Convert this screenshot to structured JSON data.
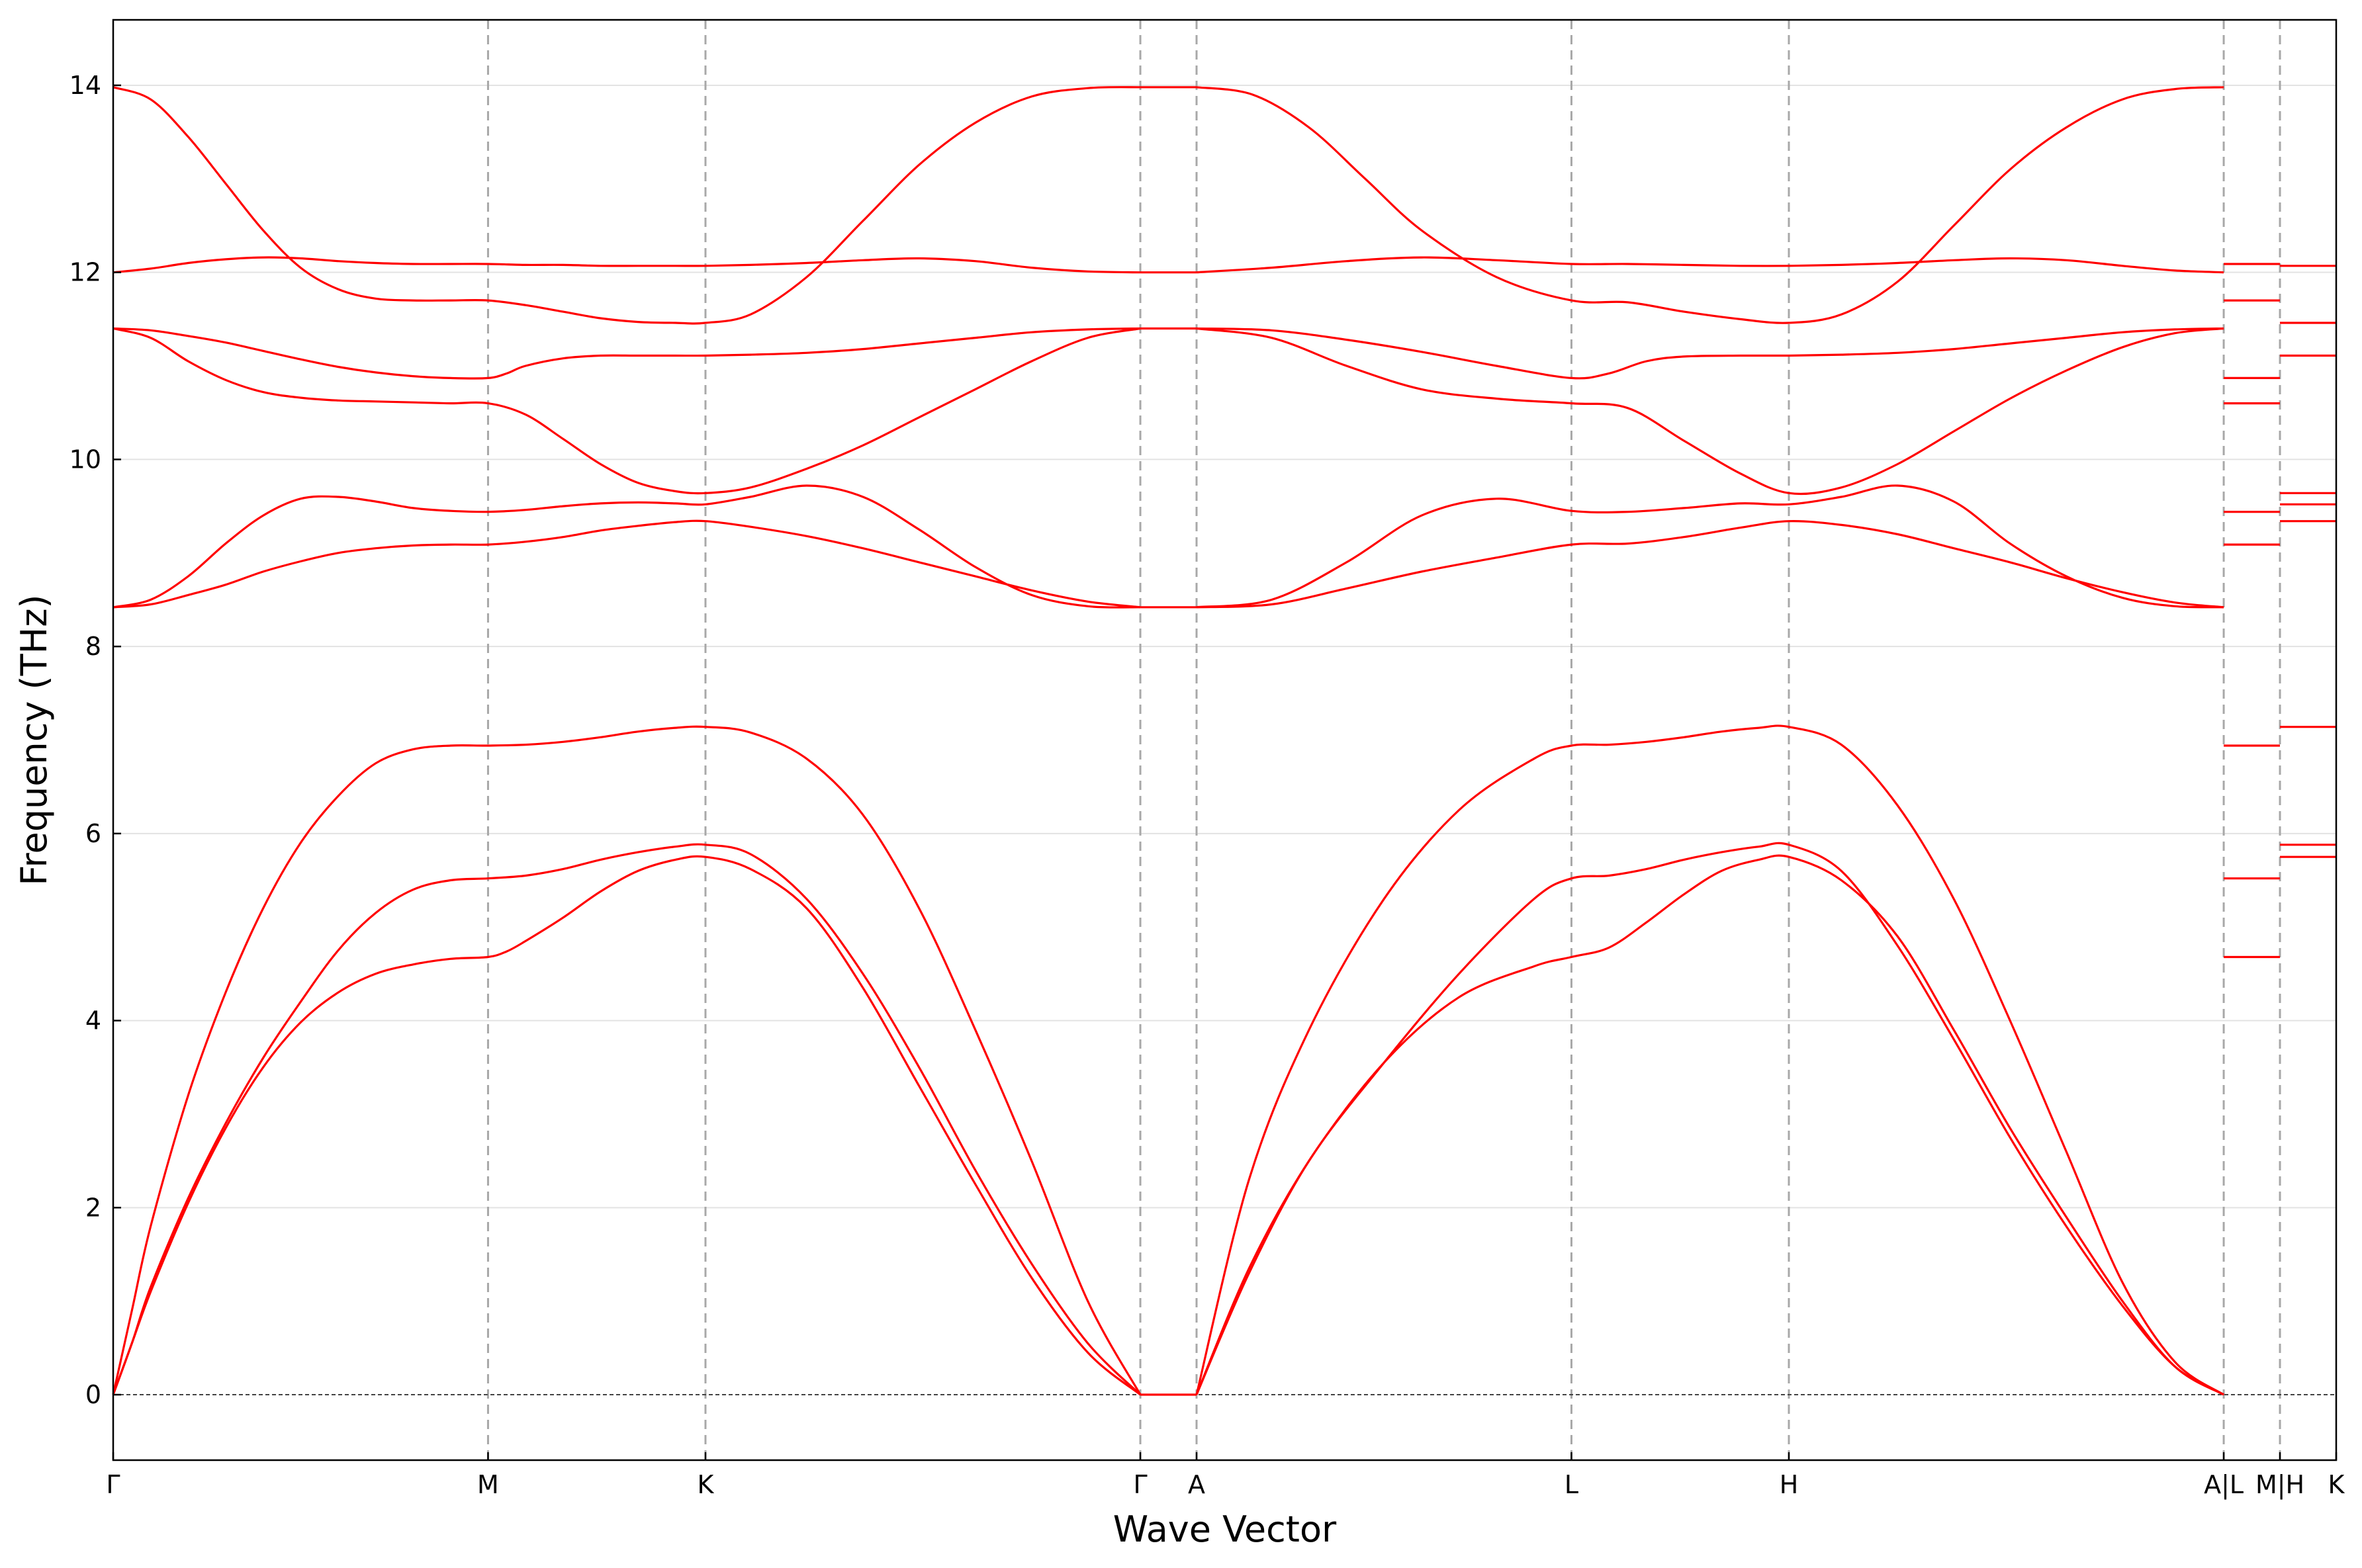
{
  "chart_data": {
    "type": "line",
    "title": "",
    "xlabel": "Wave Vector",
    "ylabel": "Frequency (THz)",
    "ylim": [
      -0.7,
      14.7
    ],
    "yticks": [
      0,
      2,
      4,
      6,
      8,
      10,
      12,
      14
    ],
    "grid": "horizontal",
    "line_color": "#ff0000",
    "segments": [
      {
        "from": "Γ",
        "to": "M"
      },
      {
        "from": "M",
        "to": "K"
      },
      {
        "from": "K",
        "to": "Γ"
      },
      {
        "from": "Γ",
        "to": "A"
      },
      {
        "from": "A",
        "to": "L"
      },
      {
        "from": "L",
        "to": "H"
      },
      {
        "from": "H",
        "to": "A"
      },
      {
        "from": "L",
        "to": "M"
      },
      {
        "from": "H",
        "to": "K"
      }
    ],
    "x_ticks": [
      {
        "x": 0.0,
        "label": "Γ"
      },
      {
        "x": 1.0,
        "label": "M"
      },
      {
        "x": 1.58,
        "label": "K"
      },
      {
        "x": 2.74,
        "label": "Γ"
      },
      {
        "x": 2.89,
        "label": "A"
      },
      {
        "x": 3.89,
        "label": "L"
      },
      {
        "x": 4.47,
        "label": "H"
      },
      {
        "x": 5.63,
        "label": "A|L"
      },
      {
        "x": 5.78,
        "label": "M|H"
      },
      {
        "x": 5.93,
        "label": "K"
      }
    ],
    "xlim": [
      0.0,
      5.93
    ],
    "series": [
      {
        "x": [
          0.0,
          0.05,
          0.1,
          0.2,
          0.3,
          0.4,
          0.5,
          0.6,
          0.7,
          0.8,
          0.9,
          1.0,
          1.05,
          1.1,
          1.2,
          1.3,
          1.4,
          1.5,
          1.58,
          1.7,
          1.85,
          2.0,
          2.15,
          2.3,
          2.45,
          2.6,
          2.74
        ],
        "values": [
          0.0,
          0.55,
          1.1,
          2.05,
          2.85,
          3.5,
          3.98,
          4.3,
          4.5,
          4.6,
          4.66,
          4.68,
          4.74,
          4.85,
          5.1,
          5.38,
          5.6,
          5.72,
          5.75,
          5.62,
          5.2,
          4.35,
          3.3,
          2.25,
          1.25,
          0.45,
          0.0
        ]
      },
      {
        "x": [
          0.0,
          0.05,
          0.1,
          0.2,
          0.3,
          0.4,
          0.5,
          0.6,
          0.7,
          0.8,
          0.9,
          1.0,
          1.1,
          1.2,
          1.3,
          1.4,
          1.5,
          1.58,
          1.7,
          1.85,
          2.0,
          2.15,
          2.3,
          2.45,
          2.6,
          2.74
        ],
        "values": [
          0.0,
          0.55,
          1.15,
          2.1,
          2.9,
          3.6,
          4.2,
          4.75,
          5.15,
          5.4,
          5.5,
          5.52,
          5.55,
          5.62,
          5.72,
          5.8,
          5.86,
          5.88,
          5.78,
          5.3,
          4.5,
          3.5,
          2.4,
          1.4,
          0.55,
          0.0
        ]
      },
      {
        "x": [
          0.0,
          0.05,
          0.1,
          0.2,
          0.3,
          0.4,
          0.5,
          0.6,
          0.7,
          0.8,
          0.9,
          1.0,
          1.1,
          1.2,
          1.3,
          1.4,
          1.5,
          1.58,
          1.7,
          1.85,
          2.0,
          2.15,
          2.3,
          2.45,
          2.6,
          2.74
        ],
        "values": [
          0.0,
          0.9,
          1.8,
          3.2,
          4.3,
          5.2,
          5.9,
          6.4,
          6.75,
          6.9,
          6.94,
          6.94,
          6.95,
          6.98,
          7.03,
          7.09,
          7.13,
          7.14,
          7.08,
          6.8,
          6.2,
          5.2,
          3.9,
          2.5,
          1.0,
          0.0
        ]
      },
      {
        "x": [
          0.0,
          0.1,
          0.2,
          0.3,
          0.4,
          0.5,
          0.6,
          0.7,
          0.8,
          0.9,
          1.0,
          1.1,
          1.2,
          1.3,
          1.4,
          1.5,
          1.58,
          1.7,
          1.85,
          2.0,
          2.15,
          2.3,
          2.45,
          2.6,
          2.74
        ],
        "values": [
          8.42,
          8.45,
          8.55,
          8.66,
          8.8,
          8.91,
          9.0,
          9.05,
          9.08,
          9.09,
          9.09,
          9.12,
          9.17,
          9.24,
          9.29,
          9.33,
          9.34,
          9.28,
          9.18,
          9.05,
          8.9,
          8.75,
          8.6,
          8.48,
          8.42
        ]
      },
      {
        "x": [
          0.0,
          0.1,
          0.2,
          0.3,
          0.4,
          0.5,
          0.6,
          0.7,
          0.8,
          0.9,
          1.0,
          1.1,
          1.2,
          1.3,
          1.4,
          1.5,
          1.58,
          1.7,
          1.85,
          2.0,
          2.15,
          2.3,
          2.45,
          2.6,
          2.74
        ],
        "values": [
          8.42,
          8.5,
          8.75,
          9.1,
          9.4,
          9.58,
          9.6,
          9.55,
          9.48,
          9.45,
          9.44,
          9.46,
          9.5,
          9.53,
          9.54,
          9.53,
          9.52,
          9.6,
          9.72,
          9.6,
          9.25,
          8.85,
          8.55,
          8.43,
          8.42
        ]
      },
      {
        "x": [
          0.0,
          0.1,
          0.2,
          0.3,
          0.4,
          0.5,
          0.6,
          0.7,
          0.8,
          0.9,
          1.0,
          1.1,
          1.2,
          1.3,
          1.4,
          1.5,
          1.58,
          1.7,
          1.85,
          2.0,
          2.15,
          2.3,
          2.45,
          2.6,
          2.74
        ],
        "values": [
          11.4,
          11.3,
          11.05,
          10.85,
          10.72,
          10.66,
          10.63,
          10.62,
          10.61,
          10.6,
          10.6,
          10.48,
          10.22,
          9.95,
          9.75,
          9.66,
          9.64,
          9.7,
          9.9,
          10.15,
          10.45,
          10.75,
          11.05,
          11.3,
          11.4
        ]
      },
      {
        "x": [
          0.0,
          0.1,
          0.2,
          0.3,
          0.4,
          0.5,
          0.6,
          0.7,
          0.8,
          0.9,
          1.0,
          1.05,
          1.1,
          1.2,
          1.3,
          1.4,
          1.5,
          1.58,
          1.7,
          1.85,
          2.0,
          2.15,
          2.3,
          2.45,
          2.6,
          2.74
        ],
        "values": [
          11.4,
          11.38,
          11.32,
          11.25,
          11.16,
          11.07,
          10.99,
          10.93,
          10.89,
          10.87,
          10.87,
          10.92,
          11.0,
          11.08,
          11.11,
          11.11,
          11.11,
          11.11,
          11.12,
          11.14,
          11.18,
          11.24,
          11.3,
          11.36,
          11.39,
          11.4
        ]
      },
      {
        "x": [
          0.0,
          0.1,
          0.2,
          0.3,
          0.4,
          0.5,
          0.6,
          0.7,
          0.8,
          0.9,
          1.0,
          1.1,
          1.2,
          1.3,
          1.4,
          1.5,
          1.58,
          1.7,
          1.85,
          2.0,
          2.15,
          2.3,
          2.45,
          2.6,
          2.74
        ],
        "values": [
          12.0,
          12.04,
          12.1,
          12.14,
          12.16,
          12.15,
          12.12,
          12.1,
          12.09,
          12.09,
          12.09,
          12.08,
          12.08,
          12.07,
          12.07,
          12.07,
          12.07,
          12.08,
          12.1,
          12.13,
          12.15,
          12.12,
          12.05,
          12.01,
          12.0
        ]
      },
      {
        "x": [
          0.0,
          0.1,
          0.2,
          0.3,
          0.4,
          0.5,
          0.6,
          0.7,
          0.8,
          0.9,
          1.0,
          1.1,
          1.2,
          1.3,
          1.4,
          1.5,
          1.58,
          1.7,
          1.85,
          2.0,
          2.15,
          2.3,
          2.45,
          2.6,
          2.74
        ],
        "values": [
          13.98,
          13.85,
          13.45,
          12.95,
          12.45,
          12.05,
          11.82,
          11.72,
          11.7,
          11.7,
          11.7,
          11.65,
          11.58,
          11.51,
          11.47,
          11.46,
          11.46,
          11.55,
          11.95,
          12.55,
          13.15,
          13.6,
          13.88,
          13.97,
          13.98
        ]
      },
      {
        "x": [
          2.74,
          2.89
        ],
        "values": [
          0.0,
          0.0
        ]
      },
      {
        "x": [
          2.74,
          2.89
        ],
        "values": [
          8.42,
          8.42
        ]
      },
      {
        "x": [
          2.74,
          2.89
        ],
        "values": [
          11.4,
          11.4
        ]
      },
      {
        "x": [
          2.74,
          2.89
        ],
        "values": [
          12.0,
          12.0
        ]
      },
      {
        "x": [
          2.74,
          2.89
        ],
        "values": [
          13.98,
          13.98
        ]
      },
      {
        "x": [
          2.89,
          3.03,
          3.19,
          3.39,
          3.59,
          3.79,
          3.89,
          3.99,
          4.09,
          4.19,
          4.29,
          4.39,
          4.47,
          4.61,
          4.76,
          4.91,
          5.06,
          5.21,
          5.36,
          5.5,
          5.63
        ],
        "values": [
          0.0,
          1.35,
          2.5,
          3.55,
          4.25,
          4.58,
          4.68,
          4.78,
          5.05,
          5.35,
          5.6,
          5.72,
          5.75,
          5.5,
          4.9,
          3.9,
          2.85,
          1.9,
          1.0,
          0.3,
          0.0
        ]
      },
      {
        "x": [
          2.89,
          3.03,
          3.19,
          3.39,
          3.59,
          3.79,
          3.89,
          3.99,
          4.09,
          4.19,
          4.29,
          4.39,
          4.47,
          4.61,
          4.76,
          4.91,
          5.06,
          5.21,
          5.36,
          5.5,
          5.63
        ],
        "values": [
          0.0,
          1.3,
          2.5,
          3.55,
          4.5,
          5.3,
          5.52,
          5.55,
          5.62,
          5.72,
          5.8,
          5.86,
          5.88,
          5.6,
          4.8,
          3.8,
          2.75,
          1.8,
          0.95,
          0.3,
          0.0
        ]
      },
      {
        "x": [
          2.89,
          3.03,
          3.19,
          3.39,
          3.59,
          3.79,
          3.89,
          3.99,
          4.09,
          4.19,
          4.29,
          4.39,
          4.47,
          4.61,
          4.76,
          4.91,
          5.06,
          5.21,
          5.36,
          5.5,
          5.63
        ],
        "values": [
          0.0,
          2.3,
          3.9,
          5.3,
          6.25,
          6.8,
          6.94,
          6.95,
          6.98,
          7.03,
          7.09,
          7.13,
          7.14,
          6.95,
          6.3,
          5.3,
          4.0,
          2.6,
          1.2,
          0.35,
          0.0
        ]
      },
      {
        "x": [
          2.89,
          3.09,
          3.29,
          3.49,
          3.69,
          3.89,
          4.04,
          4.19,
          4.34,
          4.47,
          4.61,
          4.76,
          4.91,
          5.06,
          5.21,
          5.36,
          5.5,
          5.63
        ],
        "values": [
          8.42,
          8.45,
          8.62,
          8.8,
          8.95,
          9.09,
          9.1,
          9.17,
          9.27,
          9.34,
          9.3,
          9.2,
          9.05,
          8.9,
          8.73,
          8.58,
          8.47,
          8.42
        ]
      },
      {
        "x": [
          2.89,
          3.09,
          3.29,
          3.49,
          3.69,
          3.89,
          4.04,
          4.19,
          4.34,
          4.47,
          4.61,
          4.76,
          4.91,
          5.06,
          5.21,
          5.36,
          5.5,
          5.63
        ],
        "values": [
          8.42,
          8.5,
          8.9,
          9.4,
          9.58,
          9.45,
          9.44,
          9.48,
          9.53,
          9.52,
          9.6,
          9.72,
          9.55,
          9.1,
          8.75,
          8.52,
          8.43,
          8.42
        ]
      },
      {
        "x": [
          2.89,
          3.09,
          3.29,
          3.49,
          3.69,
          3.89,
          4.04,
          4.19,
          4.34,
          4.47,
          4.61,
          4.76,
          4.91,
          5.06,
          5.21,
          5.36,
          5.5,
          5.63
        ],
        "values": [
          11.4,
          11.3,
          11.0,
          10.75,
          10.65,
          10.6,
          10.55,
          10.2,
          9.85,
          9.64,
          9.7,
          9.95,
          10.3,
          10.65,
          10.95,
          11.2,
          11.35,
          11.4
        ]
      },
      {
        "x": [
          2.89,
          3.09,
          3.29,
          3.49,
          3.69,
          3.89,
          3.99,
          4.09,
          4.19,
          4.34,
          4.47,
          4.61,
          4.76,
          4.91,
          5.06,
          5.21,
          5.36,
          5.5,
          5.63
        ],
        "values": [
          11.4,
          11.38,
          11.28,
          11.15,
          11.0,
          10.87,
          10.92,
          11.05,
          11.1,
          11.11,
          11.11,
          11.12,
          11.14,
          11.18,
          11.24,
          11.3,
          11.36,
          11.39,
          11.4
        ]
      },
      {
        "x": [
          2.89,
          3.09,
          3.29,
          3.49,
          3.69,
          3.89,
          4.04,
          4.19,
          4.34,
          4.47,
          4.61,
          4.76,
          4.91,
          5.06,
          5.21,
          5.36,
          5.5,
          5.63
        ],
        "values": [
          12.0,
          12.05,
          12.12,
          12.16,
          12.13,
          12.09,
          12.09,
          12.08,
          12.07,
          12.07,
          12.08,
          12.1,
          12.13,
          12.15,
          12.13,
          12.07,
          12.02,
          12.0
        ]
      },
      {
        "x": [
          2.89,
          3.04,
          3.19,
          3.34,
          3.49,
          3.69,
          3.89,
          4.04,
          4.19,
          4.34,
          4.47,
          4.61,
          4.76,
          4.91,
          5.06,
          5.21,
          5.36,
          5.5,
          5.63
        ],
        "values": [
          13.98,
          13.9,
          13.55,
          13.0,
          12.45,
          11.95,
          11.7,
          11.68,
          11.58,
          11.5,
          11.46,
          11.55,
          11.9,
          12.5,
          13.1,
          13.55,
          13.85,
          13.96,
          13.98
        ]
      },
      {
        "x": [
          5.63,
          5.78
        ],
        "values": [
          4.68,
          4.68
        ]
      },
      {
        "x": [
          5.63,
          5.78
        ],
        "values": [
          5.52,
          5.52
        ]
      },
      {
        "x": [
          5.63,
          5.78
        ],
        "values": [
          6.94,
          6.94
        ]
      },
      {
        "x": [
          5.63,
          5.78
        ],
        "values": [
          9.09,
          9.09
        ]
      },
      {
        "x": [
          5.63,
          5.78
        ],
        "values": [
          9.44,
          9.44
        ]
      },
      {
        "x": [
          5.63,
          5.78
        ],
        "values": [
          10.6,
          10.6
        ]
      },
      {
        "x": [
          5.63,
          5.78
        ],
        "values": [
          10.87,
          10.87
        ]
      },
      {
        "x": [
          5.63,
          5.78
        ],
        "values": [
          11.7,
          11.7
        ]
      },
      {
        "x": [
          5.63,
          5.78
        ],
        "values": [
          12.09,
          12.09
        ]
      },
      {
        "x": [
          5.78,
          5.93
        ],
        "values": [
          5.75,
          5.75
        ]
      },
      {
        "x": [
          5.78,
          5.93
        ],
        "values": [
          5.88,
          5.88
        ]
      },
      {
        "x": [
          5.78,
          5.93
        ],
        "values": [
          7.14,
          7.14
        ]
      },
      {
        "x": [
          5.78,
          5.93
        ],
        "values": [
          9.34,
          9.34
        ]
      },
      {
        "x": [
          5.78,
          5.93
        ],
        "values": [
          9.52,
          9.52
        ]
      },
      {
        "x": [
          5.78,
          5.93
        ],
        "values": [
          9.64,
          9.64
        ]
      },
      {
        "x": [
          5.78,
          5.93
        ],
        "values": [
          11.11,
          11.11
        ]
      },
      {
        "x": [
          5.78,
          5.93
        ],
        "values": [
          11.46,
          11.46
        ]
      },
      {
        "x": [
          5.78,
          5.93
        ],
        "values": [
          12.07,
          12.07
        ]
      }
    ]
  }
}
